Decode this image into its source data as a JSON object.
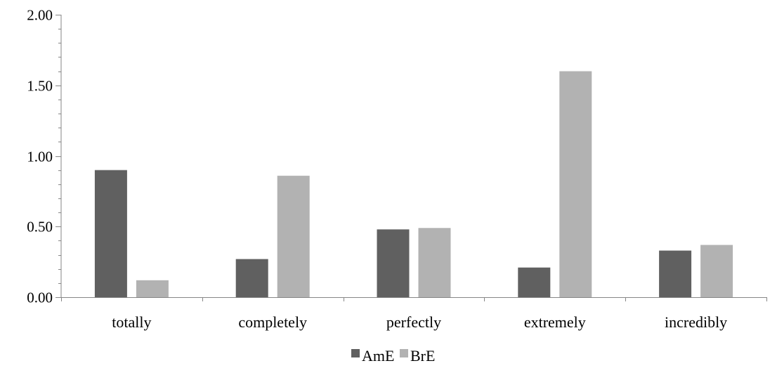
{
  "chart_data": {
    "type": "bar",
    "categories": [
      "totally",
      "completely",
      "perfectly",
      "extremely",
      "incredibly"
    ],
    "series": [
      {
        "name": "AmE",
        "values": [
          0.9,
          0.27,
          0.48,
          0.21,
          0.33
        ],
        "color": "#606060"
      },
      {
        "name": "BrE",
        "values": [
          0.12,
          0.86,
          0.49,
          1.6,
          0.37
        ],
        "color": "#b2b2b2"
      }
    ],
    "ylim": [
      0,
      2.0
    ],
    "y_ticks": [
      "0.00",
      "0.50",
      "1.00",
      "1.50",
      "2.00"
    ],
    "y_tick_values": [
      0,
      0.5,
      1.0,
      1.5,
      2.0
    ],
    "minor_tick_step": 0.1,
    "grid": false,
    "legend_position": "bottom",
    "title": "",
    "xlabel": "",
    "ylabel": ""
  }
}
